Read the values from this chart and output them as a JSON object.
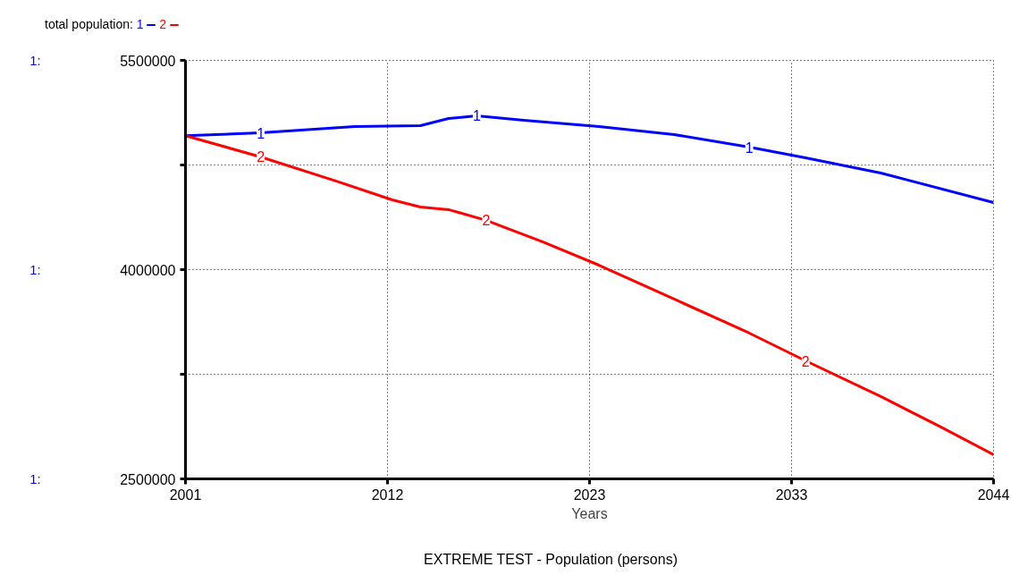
{
  "chart_data": {
    "type": "line",
    "title": "total population:",
    "xlabel": "Years",
    "annotations": [
      "EXTREME TEST - Population (persons)",
      "1:",
      "1:",
      "1:"
    ],
    "x": [
      2001,
      2005,
      2010,
      2013.5,
      2015,
      2016.5,
      2019,
      2023,
      2027,
      2031,
      2034,
      2038,
      2044
    ],
    "series": [
      {
        "name": "1",
        "color": "#0000ff",
        "values": [
          4960000,
          4980000,
          5026000,
          5032000,
          5083000,
          5103000,
          5070000,
          5026000,
          4968000,
          4878000,
          4801000,
          4692000,
          4481000
        ]
      },
      {
        "name": "2",
        "color": "#ff0000",
        "x": [
          2001,
          2005,
          2009,
          2012,
          2013.5,
          2015,
          2017,
          2020,
          2023,
          2027,
          2031,
          2034,
          2038,
          2041,
          2044
        ],
        "values": [
          4960000,
          4808000,
          4635000,
          4500000,
          4449000,
          4430000,
          4353000,
          4199000,
          4032000,
          3789000,
          3545000,
          3346000,
          3090000,
          2885000,
          2673000
        ]
      }
    ],
    "xlim": [
      2001,
      2044
    ],
    "ylim": [
      2500000,
      5500000
    ],
    "xticks": [
      2001,
      {
        "value": 2011.75,
        "label": "2012"
      },
      {
        "value": 2022.5,
        "label": "2023"
      },
      {
        "value": 2033.25,
        "label": "2033"
      },
      2044
    ],
    "yticks": [
      2500000,
      {
        "value": 3250000,
        "label": null
      },
      4000000,
      {
        "value": 4750000,
        "label": null
      },
      5500000
    ],
    "grid": true,
    "legend": "top left"
  }
}
